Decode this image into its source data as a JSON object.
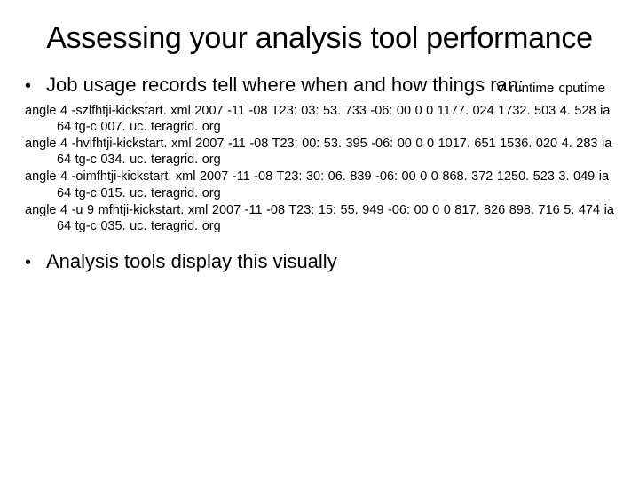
{
  "title": "Assessing your analysis tool performance",
  "bullets": {
    "first": "Job usage records tell where when and how things ran:",
    "second": "Analysis tools display this visually"
  },
  "annotation": "V  runtime  cputime",
  "records": [
    {
      "line1": "angle 4 -szlfhtji-kickstart. xml 2007 -11 -08 T23: 03: 53. 733 -06: 00 0 0 1177. 024 1732. 503",
      "line2": "4. 528 ia 64 tg-c 007. uc. teragrid. org"
    },
    {
      "line1": "angle 4 -hvlfhtji-kickstart. xml 2007 -11 -08 T23: 00: 53. 395 -06: 00 0 0 1017. 651 1536. 020",
      "line2": "4. 283 ia 64 tg-c 034. uc. teragrid. org"
    },
    {
      "line1": "angle 4 -oimfhtji-kickstart. xml 2007 -11 -08 T23: 30: 06. 839 -06: 00 0 0 868. 372 1250. 523",
      "line2": "3. 049 ia 64 tg-c 015. uc. teragrid. org"
    },
    {
      "line1": "angle 4 -u 9 mfhtji-kickstart. xml 2007 -11 -08 T23: 15: 55. 949 -06: 00 0 0 817. 826 898. 716",
      "line2": "5. 474 ia 64 tg-c 035. uc. teragrid. org"
    }
  ],
  "style": {
    "title_fontsize": 34,
    "bullet_fontsize": 22,
    "record_fontsize": 14.5,
    "annotation_fontsize": 15,
    "background_color": "#ffffff",
    "text_color": "#000000",
    "font_family": "Arial"
  }
}
